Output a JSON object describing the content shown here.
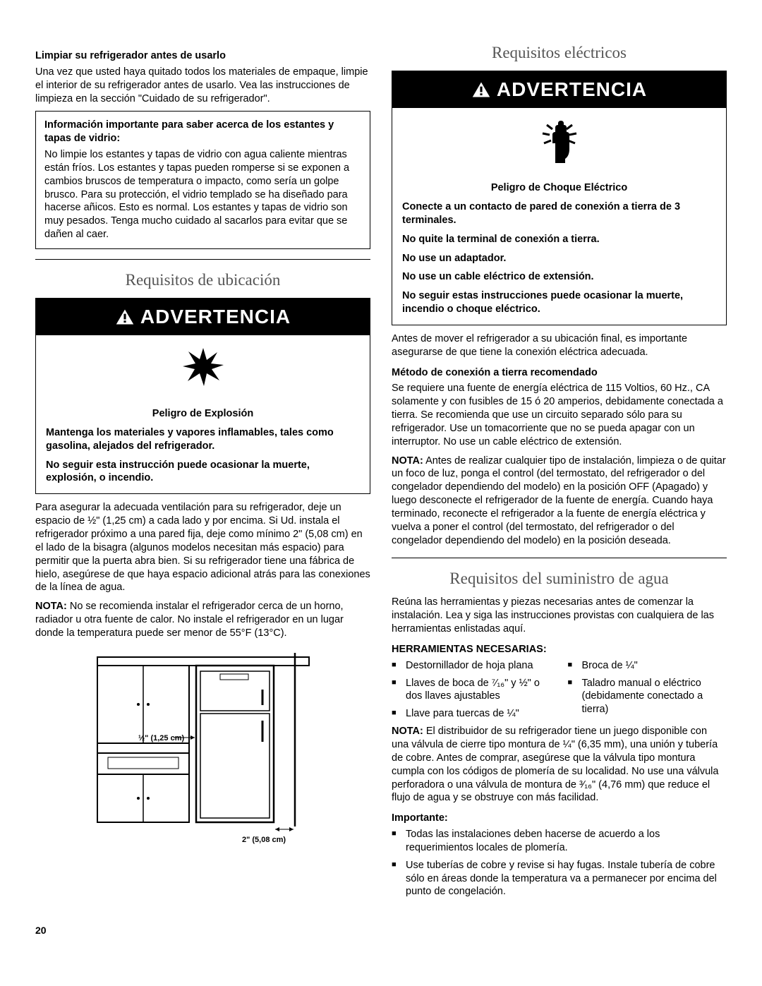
{
  "left": {
    "clean_heading": "Limpiar su refrigerador antes de usarlo",
    "clean_para": "Una vez que usted haya quitado todos los materiales de empaque, limpie el interior de su refrigerador antes de usarlo. Vea las instrucciones de limpieza en la sección \"Cuidado de su refrigerador\".",
    "glass_box_heading": "Información importante para saber acerca de los estantes y tapas de vidrio:",
    "glass_box_body": "No limpie los estantes y tapas de vidrio con agua caliente mientras están fríos. Los estantes y tapas pueden romperse si se exponen a cambios bruscos de temperatura o impacto, como sería un golpe brusco. Para su protección, el vidrio templado se ha diseñado para hacerse añicos. Esto es normal. Los estantes y tapas de vidrio son muy pesados. Tenga mucho cuidado al sacarlos para evitar que se dañen al caer.",
    "location_section": "Requisitos de ubicación",
    "warn_label": "ADVERTENCIA",
    "explosion_title": "Peligro de Explosión",
    "explosion_line1": "Mantenga los materiales y vapores inflamables, tales como gasolina, alejados del refrigerador.",
    "explosion_line2": "No seguir esta instrucción puede ocasionar la muerte, explosión, o incendio.",
    "vent_para": "Para asegurar la adecuada ventilación para su refrigerador, deje un espacio de ½\" (1,25 cm) a cada lado y por encima. Si Ud. instala el refrigerador próximo a una pared fija, deje como mínimo 2\" (5,08 cm) en el lado de la bisagra (algunos modelos necesitan más espacio) para permitir que la puerta abra bien. Si su refrigerador tiene una fábrica de hielo, asegúrese de que haya espacio adicional atrás para las conexiones de la línea de agua.",
    "vent_nota_label": "NOTA:",
    "vent_nota": " No se recomienda instalar el refrigerador cerca de un horno, radiador u otra fuente de calor. No instale el refrigerador en un lugar donde la temperatura puede ser menor de 55°F (13°C).",
    "diag_label1": "½\" (1,25 cm)",
    "diag_label2": "2\" (5,08 cm)"
  },
  "right": {
    "elec_section": "Requisitos eléctricos",
    "warn_label": "ADVERTENCIA",
    "shock_title": "Peligro de Choque Eléctrico",
    "shock_l1": "Conecte a un contacto de pared de conexión a tierra de 3 terminales.",
    "shock_l2": "No quite la terminal de conexión a tierra.",
    "shock_l3": "No use un adaptador.",
    "shock_l4": "No use un cable eléctrico de extensión.",
    "shock_l5": "No seguir estas instrucciones puede ocasionar la muerte, incendio o choque eléctrico.",
    "elec_para1": "Antes de mover el refrigerador a su ubicación final, es importante asegurarse de que tiene la conexión eléctrica adecuada.",
    "ground_heading": "Método de conexión a tierra recomendado",
    "ground_para": "Se requiere una fuente de energía eléctrica de 115 Voltios, 60 Hz., CA solamente y con fusibles de 15 ó 20 amperios, debidamente conectada a tierra. Se recomienda que use un circuito separado sólo para su refrigerador. Use un tomacorriente que no se pueda apagar con un interruptor. No use un cable eléctrico de extensión.",
    "nota_label": "NOTA:",
    "nota_body": " Antes de realizar cualquier tipo de instalación, limpieza o de quitar un foco de luz, ponga el control (del termostato, del refrigerador o del congelador dependiendo del modelo) en la posición OFF (Apagado) y luego desconecte el refrigerador de la fuente de energía. Cuando haya terminado, reconecte el refrigerador a la fuente de energía eléctrica y vuelva a poner el control (del termostato, del refrigerador o del congelador dependiendo del modelo) en la posición deseada.",
    "water_section": "Requisitos del suministro de agua",
    "water_intro": "Reúna las herramientas y piezas necesarias antes de comenzar la instalación. Lea y siga las instrucciones provistas con cualquiera de las herramientas enlistadas aquí.",
    "tools_heading": "HERRAMIENTAS NECESARIAS:",
    "tools_left": [
      "Destornillador de hoja plana",
      "Llaves de boca de ⁷⁄₁₆\" y ½\" o dos llaves ajustables",
      "Llave para tuercas de ¼\""
    ],
    "tools_right": [
      "Broca de ¼\"",
      "Taladro manual o eléctrico (debidamente conectado a tierra)"
    ],
    "dist_nota_label": "NOTA:",
    "dist_nota": " El distribuidor de su refrigerador tiene un juego disponible con una válvula de cierre tipo montura de ¼\" (6,35 mm), una unión y tubería de cobre. Antes de comprar, asegúrese que la válvula tipo montura cumpla con los códigos de plomería de su localidad. No use una válvula perforadora o una válvula de montura de ³⁄₁₆\" (4,76 mm) que reduce el flujo de agua y se obstruye con más facilidad.",
    "importante_label": "Importante:",
    "importante_items": [
      "Todas las instalaciones deben hacerse de acuerdo a los requerimientos locales de plomería.",
      "Use tuberías de cobre y revise si hay fugas. Instale tubería de cobre sólo en áreas donde la temperatura va a permanecer por encima del punto de congelación."
    ]
  },
  "page_number": "20"
}
